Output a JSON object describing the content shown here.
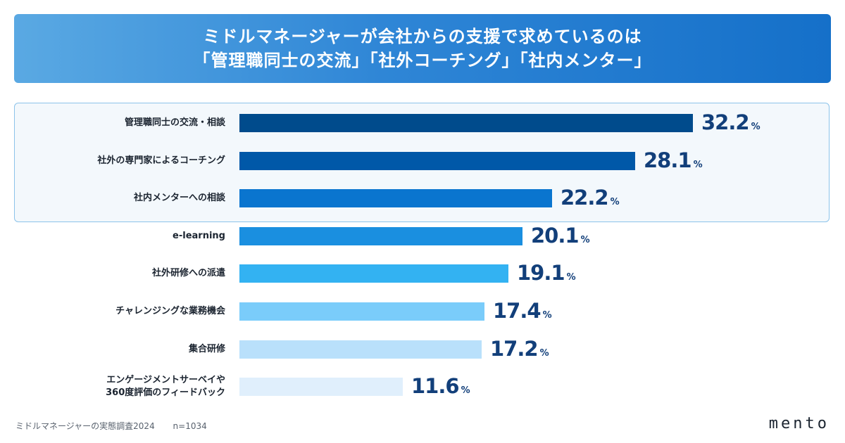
{
  "header": {
    "title_line1": "ミドルマネージャーが会社からの支援で求めているのは",
    "title_line2": "「管理職同士の交流」「社外コーチング」「社内メンター」"
  },
  "chart_data": {
    "type": "bar",
    "orientation": "horizontal",
    "unit": "%",
    "categories": [
      "管理職同士の交流・相談",
      "社外の専門家によるコーチング",
      "社内メンターへの相談",
      "e-learning",
      "社外研修への派遣",
      "チャレンジングな業務機会",
      "集合研修",
      [
        "エンゲージメントサーベイや",
        "360度評価のフィードバック"
      ]
    ],
    "values": [
      32.2,
      28.1,
      22.2,
      20.1,
      19.1,
      17.4,
      17.2,
      11.6
    ],
    "colors": [
      "#004b8c",
      "#0058a8",
      "#0a75cf",
      "#1a8fe0",
      "#33b2f2",
      "#7accfa",
      "#b9e0fb",
      "#e0effc"
    ],
    "xlim": [
      0,
      32.2
    ],
    "highlighted_top": 3
  },
  "footer": {
    "source": "ミドルマネージャーの実態調査2024",
    "n": "n=1034",
    "logo": "mento"
  }
}
